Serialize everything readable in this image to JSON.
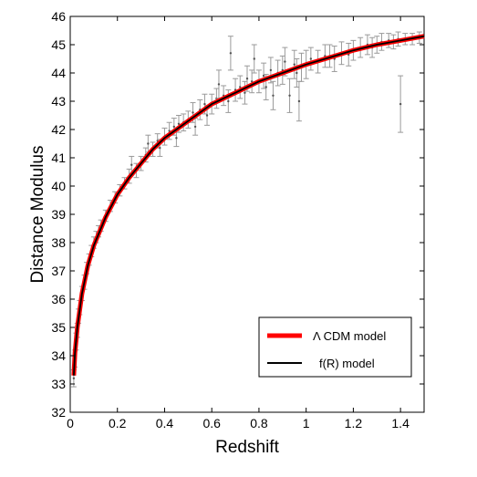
{
  "chart_data": {
    "type": "scatter",
    "title": "",
    "xlabel": "Redshift",
    "ylabel": "Distance Modulus",
    "xlim": [
      0,
      1.5
    ],
    "ylim": [
      32,
      46
    ],
    "x_ticks": [
      "0",
      "0.2",
      "0.4",
      "0.6",
      "0.8",
      "1",
      "1.2",
      "1.4"
    ],
    "y_ticks": [
      "32",
      "33",
      "34",
      "35",
      "36",
      "37",
      "38",
      "39",
      "40",
      "41",
      "42",
      "43",
      "44",
      "45",
      "46"
    ],
    "grid": false,
    "legend_position": "bottom-right",
    "series": [
      {
        "name": "Λ CDM model",
        "kind": "line",
        "color": "#ff0000",
        "points": [
          [
            0.015,
            33.3
          ],
          [
            0.02,
            34.1
          ],
          [
            0.03,
            35.0
          ],
          [
            0.05,
            36.2
          ],
          [
            0.075,
            37.2
          ],
          [
            0.1,
            37.9
          ],
          [
            0.15,
            38.9
          ],
          [
            0.2,
            39.7
          ],
          [
            0.25,
            40.3
          ],
          [
            0.3,
            40.8
          ],
          [
            0.35,
            41.3
          ],
          [
            0.4,
            41.7
          ],
          [
            0.45,
            42.0
          ],
          [
            0.5,
            42.3
          ],
          [
            0.55,
            42.6
          ],
          [
            0.6,
            42.9
          ],
          [
            0.7,
            43.3
          ],
          [
            0.8,
            43.7
          ],
          [
            0.9,
            44.0
          ],
          [
            1.0,
            44.3
          ],
          [
            1.1,
            44.55
          ],
          [
            1.2,
            44.8
          ],
          [
            1.3,
            45.0
          ],
          [
            1.4,
            45.15
          ],
          [
            1.5,
            45.3
          ]
        ]
      },
      {
        "name": "f(R) model",
        "kind": "line",
        "color": "#000000",
        "points": [
          [
            0.015,
            33.3
          ],
          [
            0.02,
            34.1
          ],
          [
            0.03,
            35.0
          ],
          [
            0.05,
            36.2
          ],
          [
            0.075,
            37.2
          ],
          [
            0.1,
            37.9
          ],
          [
            0.15,
            38.9
          ],
          [
            0.2,
            39.7
          ],
          [
            0.25,
            40.3
          ],
          [
            0.3,
            40.8
          ],
          [
            0.35,
            41.3
          ],
          [
            0.4,
            41.7
          ],
          [
            0.45,
            42.0
          ],
          [
            0.5,
            42.3
          ],
          [
            0.55,
            42.6
          ],
          [
            0.6,
            42.9
          ],
          [
            0.7,
            43.3
          ],
          [
            0.8,
            43.7
          ],
          [
            0.9,
            44.0
          ],
          [
            1.0,
            44.3
          ],
          [
            1.1,
            44.55
          ],
          [
            1.2,
            44.8
          ],
          [
            1.3,
            45.0
          ],
          [
            1.4,
            45.15
          ],
          [
            1.5,
            45.3
          ]
        ]
      },
      {
        "name": "",
        "kind": "errorbar",
        "color": "#9a9a9a",
        "points": [
          [
            0.015,
            33.2,
            0.3
          ],
          [
            0.02,
            33.9,
            0.3
          ],
          [
            0.025,
            34.5,
            0.3
          ],
          [
            0.03,
            34.9,
            0.25
          ],
          [
            0.035,
            35.4,
            0.25
          ],
          [
            0.04,
            35.7,
            0.25
          ],
          [
            0.05,
            36.2,
            0.25
          ],
          [
            0.06,
            36.6,
            0.25
          ],
          [
            0.07,
            37.1,
            0.2
          ],
          [
            0.08,
            37.4,
            0.2
          ],
          [
            0.09,
            37.7,
            0.2
          ],
          [
            0.1,
            38.0,
            0.2
          ],
          [
            0.11,
            38.2,
            0.2
          ],
          [
            0.12,
            38.4,
            0.2
          ],
          [
            0.13,
            38.6,
            0.2
          ],
          [
            0.15,
            38.95,
            0.2
          ],
          [
            0.17,
            39.3,
            0.2
          ],
          [
            0.19,
            39.6,
            0.2
          ],
          [
            0.21,
            39.85,
            0.2
          ],
          [
            0.23,
            40.1,
            0.2
          ],
          [
            0.25,
            40.35,
            0.25
          ],
          [
            0.26,
            40.75,
            0.3
          ],
          [
            0.28,
            40.55,
            0.25
          ],
          [
            0.3,
            40.8,
            0.25
          ],
          [
            0.32,
            41.1,
            0.25
          ],
          [
            0.33,
            41.5,
            0.3
          ],
          [
            0.35,
            41.3,
            0.25
          ],
          [
            0.37,
            41.6,
            0.25
          ],
          [
            0.38,
            41.35,
            0.3
          ],
          [
            0.4,
            41.75,
            0.3
          ],
          [
            0.42,
            41.95,
            0.3
          ],
          [
            0.44,
            42.1,
            0.3
          ],
          [
            0.45,
            41.7,
            0.3
          ],
          [
            0.46,
            42.2,
            0.3
          ],
          [
            0.48,
            42.25,
            0.3
          ],
          [
            0.5,
            42.35,
            0.3
          ],
          [
            0.52,
            42.6,
            0.35
          ],
          [
            0.53,
            42.1,
            0.3
          ],
          [
            0.55,
            42.7,
            0.35
          ],
          [
            0.57,
            42.9,
            0.35
          ],
          [
            0.58,
            42.5,
            0.35
          ],
          [
            0.6,
            42.9,
            0.35
          ],
          [
            0.62,
            43.1,
            0.35
          ],
          [
            0.63,
            43.6,
            0.5
          ],
          [
            0.65,
            43.2,
            0.35
          ],
          [
            0.67,
            43.0,
            0.4
          ],
          [
            0.68,
            44.7,
            0.6
          ],
          [
            0.7,
            43.4,
            0.4
          ],
          [
            0.72,
            43.5,
            0.4
          ],
          [
            0.74,
            43.3,
            0.4
          ],
          [
            0.75,
            43.8,
            0.45
          ],
          [
            0.77,
            43.7,
            0.4
          ],
          [
            0.78,
            44.5,
            0.5
          ],
          [
            0.8,
            43.7,
            0.4
          ],
          [
            0.82,
            43.9,
            0.45
          ],
          [
            0.83,
            43.5,
            0.45
          ],
          [
            0.85,
            44.1,
            0.45
          ],
          [
            0.86,
            43.2,
            0.5
          ],
          [
            0.88,
            44.0,
            0.45
          ],
          [
            0.9,
            44.1,
            0.5
          ],
          [
            0.91,
            44.4,
            0.5
          ],
          [
            0.93,
            43.2,
            0.6
          ],
          [
            0.95,
            44.3,
            0.5
          ],
          [
            0.96,
            44.0,
            0.5
          ],
          [
            0.97,
            43.0,
            0.7
          ],
          [
            0.98,
            44.2,
            0.5
          ],
          [
            1.0,
            44.3,
            0.5
          ],
          [
            1.02,
            44.5,
            0.4
          ],
          [
            1.05,
            44.4,
            0.4
          ],
          [
            1.08,
            44.6,
            0.4
          ],
          [
            1.1,
            44.6,
            0.4
          ],
          [
            1.12,
            44.5,
            0.45
          ],
          [
            1.15,
            44.7,
            0.4
          ],
          [
            1.18,
            44.65,
            0.4
          ],
          [
            1.2,
            44.8,
            0.35
          ],
          [
            1.23,
            44.9,
            0.35
          ],
          [
            1.26,
            45.0,
            0.35
          ],
          [
            1.28,
            44.9,
            0.35
          ],
          [
            1.3,
            45.0,
            0.3
          ],
          [
            1.32,
            45.1,
            0.3
          ],
          [
            1.35,
            45.15,
            0.25
          ],
          [
            1.37,
            45.1,
            0.25
          ],
          [
            1.39,
            45.2,
            0.25
          ],
          [
            1.4,
            42.9,
            1.0
          ],
          [
            1.42,
            45.2,
            0.2
          ],
          [
            1.45,
            45.2,
            0.2
          ],
          [
            1.48,
            45.25,
            0.2
          ]
        ]
      }
    ],
    "legend": [
      {
        "label": "Λ CDM model",
        "color": "#ff0000"
      },
      {
        "label": "f(R) model",
        "color": "#000000"
      }
    ]
  }
}
